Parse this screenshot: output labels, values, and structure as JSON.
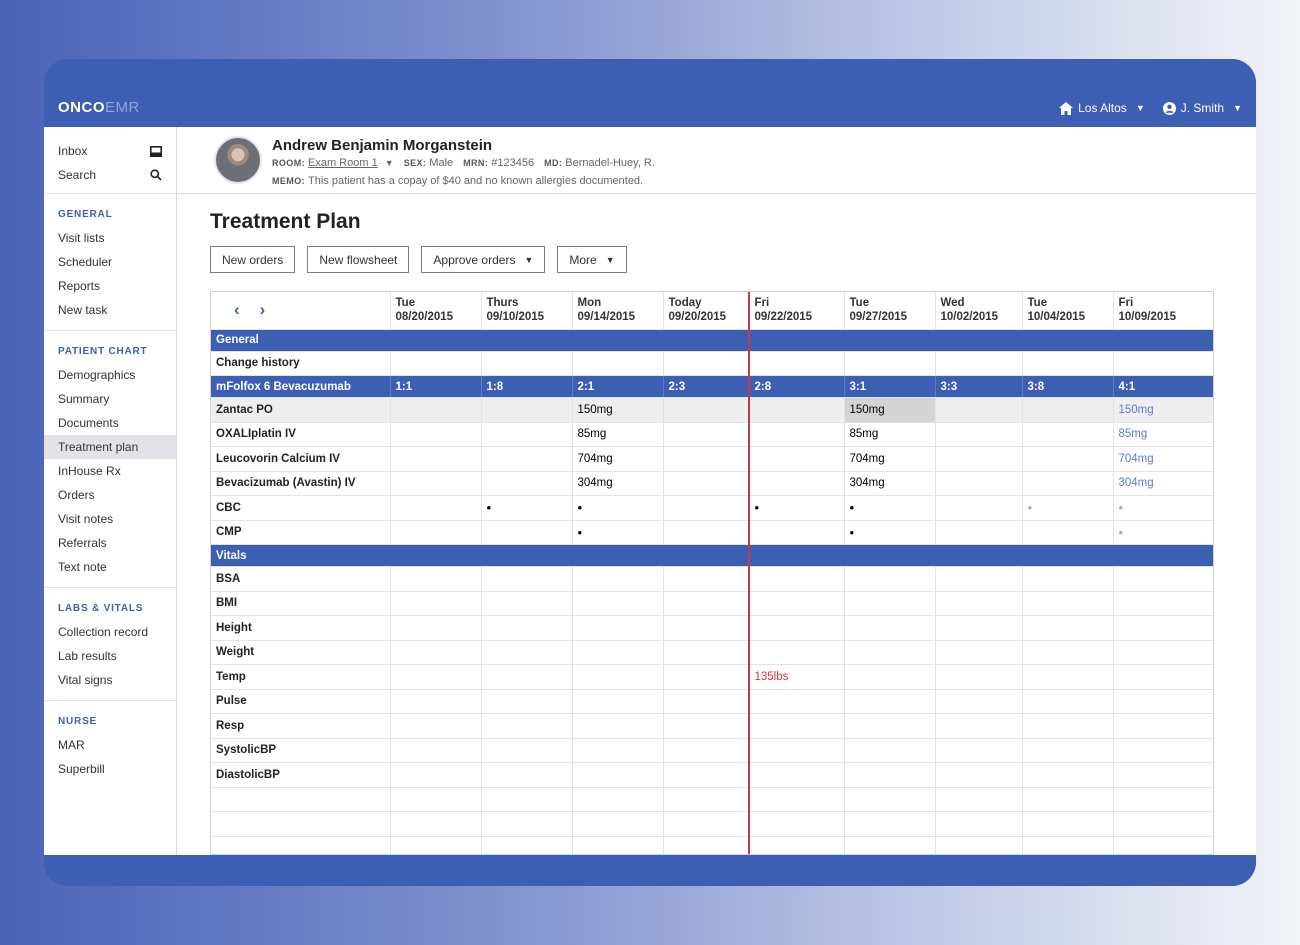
{
  "app": {
    "logo_main": "ONCO",
    "logo_accent": "EMR"
  },
  "topbar": {
    "location": "Los Altos",
    "user": "J. Smith"
  },
  "sidebar": {
    "top_items": [
      {
        "label": "Inbox",
        "icon": "inbox-icon"
      },
      {
        "label": "Search",
        "icon": "search-icon"
      }
    ],
    "sections": [
      {
        "heading": "GENERAL",
        "items": [
          "Visit lists",
          "Scheduler",
          "Reports",
          "New task"
        ]
      },
      {
        "heading": "PATIENT CHART",
        "items": [
          "Demographics",
          "Summary",
          "Documents",
          "Treatment plan",
          "InHouse Rx",
          "Orders",
          "Visit notes",
          "Referrals",
          "Text note"
        ]
      },
      {
        "heading": "LABS & VITALS",
        "items": [
          "Collection record",
          "Lab results",
          "Vital signs"
        ]
      },
      {
        "heading": "NURSE",
        "items": [
          "MAR",
          "Superbill"
        ]
      }
    ],
    "active_item": "Treatment plan"
  },
  "patient": {
    "name": "Andrew Benjamin Morganstein",
    "room_label": "ROOM:",
    "room": "Exam Room 1",
    "sex_label": "SEX:",
    "sex": "Male",
    "mrn_label": "MRN:",
    "mrn": "#123456",
    "md_label": "MD:",
    "md": "Bernadel-Huey, R.",
    "memo_label": "MEMO:",
    "memo": "This patient has a copay of $40 and no known allergies documented."
  },
  "page": {
    "title": "Treatment Plan"
  },
  "toolbar": {
    "new_orders": "New orders",
    "new_flowsheet": "New flowsheet",
    "approve_orders": "Approve orders",
    "more": "More"
  },
  "grid": {
    "nav_prev": "‹",
    "nav_next": "›",
    "columns": [
      {
        "day": "Tue",
        "date": "08/20/2015"
      },
      {
        "day": "Thurs",
        "date": "09/10/2015"
      },
      {
        "day": "Mon",
        "date": "09/14/2015"
      },
      {
        "day": "Today",
        "date": "09/20/2015"
      },
      {
        "day": "Fri",
        "date": "09/22/2015"
      },
      {
        "day": "Tue",
        "date": "09/27/2015"
      },
      {
        "day": "Wed",
        "date": "10/02/2015"
      },
      {
        "day": "Tue",
        "date": "10/04/2015"
      },
      {
        "day": "Fri",
        "date": "10/09/2015"
      }
    ],
    "general_section": "General",
    "change_history": "Change history",
    "regimen": {
      "name": "mFolfox 6 Bevacuzumab",
      "cycles": [
        "1:1",
        "1:8",
        "2:1",
        "2:3",
        "2:8",
        "3:1",
        "3:3",
        "3:8",
        "4:1"
      ]
    },
    "med_rows": [
      {
        "label": "Zantac PO",
        "cells": [
          "",
          "",
          "150mg",
          "",
          "",
          "150mg",
          "",
          "",
          "150mg"
        ]
      },
      {
        "label": "OXALIplatin IV",
        "cells": [
          "",
          "",
          "85mg",
          "",
          "",
          "85mg",
          "",
          "",
          "85mg"
        ]
      },
      {
        "label": "Leucovorin Calcium IV",
        "cells": [
          "",
          "",
          "704mg",
          "",
          "",
          "704mg",
          "",
          "",
          "704mg"
        ]
      },
      {
        "label": "Bevacizumab (Avastin) IV",
        "cells": [
          "",
          "",
          "304mg",
          "",
          "",
          "304mg",
          "",
          "",
          "304mg"
        ]
      },
      {
        "label": "CBC",
        "cells": [
          "",
          "•",
          "•",
          "",
          "•",
          "•",
          "",
          "•",
          "•"
        ]
      },
      {
        "label": "CMP",
        "cells": [
          "",
          "",
          "•",
          "",
          "",
          "•",
          "",
          "",
          "•"
        ]
      }
    ],
    "vitals_section": "Vitals",
    "vital_rows": [
      {
        "label": "BSA",
        "cells": [
          "",
          "",
          "",
          "",
          "",
          "",
          "",
          "",
          ""
        ]
      },
      {
        "label": "BMI",
        "cells": [
          "",
          "",
          "",
          "",
          "",
          "",
          "",
          "",
          ""
        ]
      },
      {
        "label": "Height",
        "cells": [
          "",
          "",
          "",
          "",
          "",
          "",
          "",
          "",
          ""
        ]
      },
      {
        "label": "Weight",
        "cells": [
          "",
          "",
          "",
          "",
          "",
          "",
          "",
          "",
          ""
        ]
      },
      {
        "label": "Temp",
        "cells": [
          "",
          "",
          "",
          "",
          "135lbs",
          "",
          "",
          "",
          ""
        ]
      },
      {
        "label": "Pulse",
        "cells": [
          "",
          "",
          "",
          "",
          "",
          "",
          "",
          "",
          ""
        ]
      },
      {
        "label": "Resp",
        "cells": [
          "",
          "",
          "",
          "",
          "",
          "",
          "",
          "",
          ""
        ]
      },
      {
        "label": "SystolicBP",
        "cells": [
          "",
          "",
          "",
          "",
          "",
          "",
          "",
          "",
          ""
        ]
      },
      {
        "label": "DiastolicBP",
        "cells": [
          "",
          "",
          "",
          "",
          "",
          "",
          "",
          "",
          ""
        ]
      }
    ],
    "colors": {
      "section_bg": "#3c5fb4",
      "today_line": "#c23a46",
      "future_text": "#5b78cf",
      "alert_text": "#dd3333"
    }
  }
}
